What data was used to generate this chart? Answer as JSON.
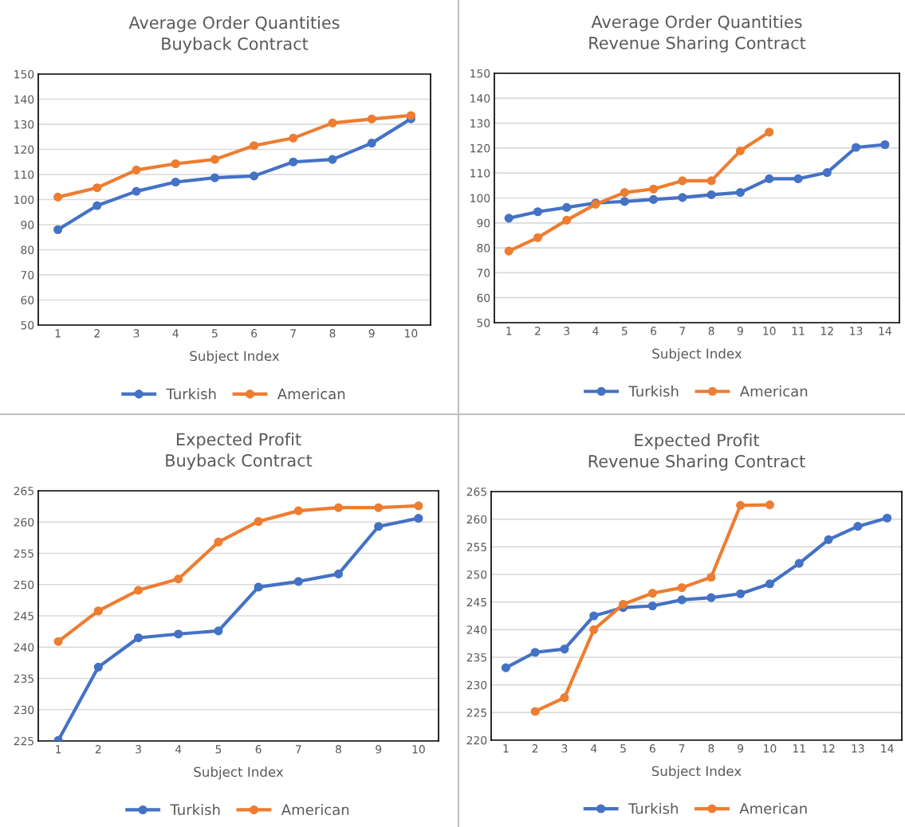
{
  "chart_data": [
    {
      "type": "line",
      "title": "Average Order Quantities\nBuyback Contract",
      "xlabel": "Subject Index",
      "categories": [
        "1",
        "2",
        "3",
        "4",
        "5",
        "6",
        "7",
        "8",
        "9",
        "10"
      ],
      "ylim": [
        50,
        150
      ],
      "yticks": [
        50,
        60,
        70,
        80,
        90,
        100,
        110,
        120,
        130,
        140,
        150
      ],
      "grid": "y",
      "legend": "bottom",
      "marker": "circle",
      "line_style": "solid",
      "series": [
        {
          "name": "Turkish",
          "color": "#4472c4",
          "values": [
            88,
            97.6,
            103.3,
            107,
            108.7,
            109.4,
            115,
            116,
            122.5,
            132.2
          ]
        },
        {
          "name": "American",
          "color": "#ed7d31",
          "values": [
            101,
            104.7,
            111.8,
            114.3,
            116,
            121.5,
            124.5,
            130.5,
            132.1,
            133.5
          ]
        }
      ]
    },
    {
      "type": "line",
      "title": "Average Order Quantities\nRevenue Sharing Contract",
      "xlabel": "Subject Index",
      "categories": [
        "1",
        "2",
        "3",
        "4",
        "5",
        "6",
        "7",
        "8",
        "9",
        "10",
        "11",
        "12",
        "13",
        "14"
      ],
      "ylim": [
        50,
        150
      ],
      "yticks": [
        50,
        60,
        70,
        80,
        90,
        100,
        110,
        120,
        130,
        140,
        150
      ],
      "grid": "y",
      "legend": "bottom",
      "marker": "circle",
      "line_style": "solid",
      "series": [
        {
          "name": "Turkish",
          "color": "#4472c4",
          "values": [
            91.9,
            94.5,
            96.2,
            98,
            98.6,
            99.4,
            100.2,
            101.3,
            102.2,
            107.7,
            107.7,
            110.2,
            120.3,
            121.4
          ]
        },
        {
          "name": "American",
          "color": "#ed7d31",
          "values": [
            78.7,
            84.1,
            91.1,
            97.5,
            102.2,
            103.6,
            106.9,
            106.9,
            118.9,
            126.4,
            null,
            null,
            null,
            null
          ]
        }
      ]
    },
    {
      "type": "line",
      "title": "Expected Profit\nBuyback Contract",
      "xlabel": "Subject Index",
      "categories": [
        "1",
        "2",
        "3",
        "4",
        "5",
        "6",
        "7",
        "8",
        "9",
        "10"
      ],
      "ylim": [
        225,
        265
      ],
      "yticks": [
        225,
        230,
        235,
        240,
        245,
        250,
        255,
        260,
        265
      ],
      "grid": "y",
      "legend": "bottom",
      "marker": "circle",
      "line_style": "solid",
      "series": [
        {
          "name": "Turkish",
          "color": "#4472c4",
          "values": [
            225.1,
            236.8,
            241.5,
            242.1,
            242.6,
            249.6,
            250.5,
            251.7,
            259.3,
            260.6
          ]
        },
        {
          "name": "American",
          "color": "#ed7d31",
          "values": [
            240.9,
            245.8,
            249.1,
            250.9,
            256.8,
            260.1,
            261.8,
            262.3,
            262.3,
            262.6
          ]
        }
      ]
    },
    {
      "type": "line",
      "title": "Expected Profit\nRevenue Sharing Contract",
      "xlabel": "Subject Index",
      "categories": [
        "1",
        "2",
        "3",
        "4",
        "5",
        "6",
        "7",
        "8",
        "9",
        "10",
        "11",
        "12",
        "13",
        "14"
      ],
      "ylim": [
        220,
        265
      ],
      "yticks": [
        220,
        225,
        230,
        235,
        240,
        245,
        250,
        255,
        260,
        265
      ],
      "grid": "y",
      "legend": "bottom",
      "marker": "circle",
      "line_style": "solid",
      "series": [
        {
          "name": "Turkish",
          "color": "#4472c4",
          "values": [
            233.1,
            235.9,
            236.5,
            242.5,
            244.0,
            244.3,
            245.4,
            245.8,
            246.5,
            248.3,
            252.0,
            256.3,
            258.7,
            260.2
          ]
        },
        {
          "name": "American",
          "color": "#ed7d31",
          "values": [
            null,
            225.2,
            227.7,
            240.0,
            244.6,
            246.6,
            247.6,
            249.5,
            262.5,
            262.6,
            null,
            null,
            null,
            null
          ]
        }
      ]
    }
  ]
}
